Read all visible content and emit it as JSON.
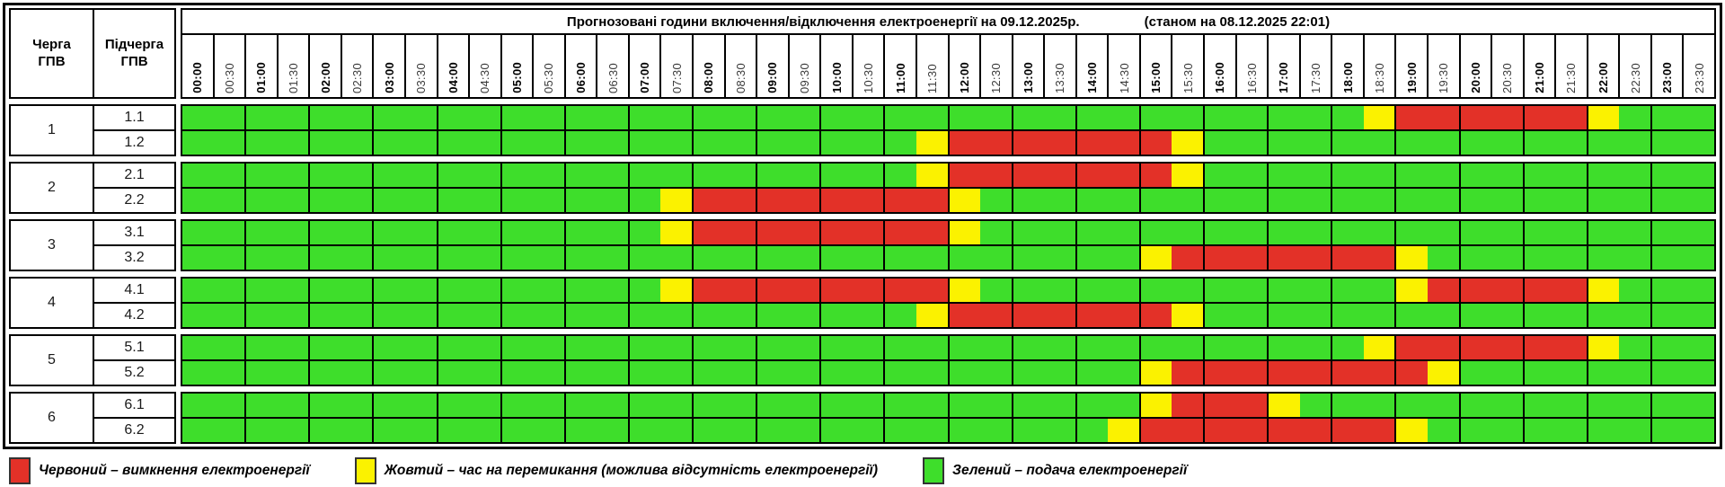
{
  "header": {
    "queue_label": "Черга\nГПВ",
    "subqueue_label": "Підчерга\nГПВ",
    "title": "Прогнозовані години включення/відключення електроенергії на 09.12.2025р.",
    "status_note": "(станом на 08.12.2025 22:01)"
  },
  "legend": [
    {
      "color": "#E33128",
      "label": "Червоний – вимкнення електроенергії"
    },
    {
      "color": "#FBF200",
      "label": "Жовтий – час на перемикання (можлива відсутність електроенергії)"
    },
    {
      "color": "#3EDE2B",
      "label": "Зелений – подача електроенергії"
    }
  ],
  "chart_data": {
    "type": "heatmap",
    "title": "Прогнозовані години включення/відключення електроенергії на 09.12.2025р.",
    "status_note": "(станом на 08.12.2025 22:01)",
    "slot_minutes": 30,
    "time_slots": [
      "00:00",
      "00:30",
      "01:00",
      "01:30",
      "02:00",
      "02:30",
      "03:00",
      "03:30",
      "04:00",
      "04:30",
      "05:00",
      "05:30",
      "06:00",
      "06:30",
      "07:00",
      "07:30",
      "08:00",
      "08:30",
      "09:00",
      "09:30",
      "10:00",
      "10:30",
      "11:00",
      "11:30",
      "12:00",
      "12:30",
      "13:00",
      "13:30",
      "14:00",
      "14:30",
      "15:00",
      "15:30",
      "16:00",
      "16:30",
      "17:00",
      "17:30",
      "18:00",
      "18:30",
      "19:00",
      "19:30",
      "20:00",
      "20:30",
      "21:00",
      "21:30",
      "22:00",
      "22:30",
      "23:00",
      "23:30"
    ],
    "states": {
      "G": "подача електроенергії",
      "Y": "час на перемикання (можлива відсутність електроенергії)",
      "R": "вимкнення електроенергії"
    },
    "colors": {
      "G": "#3EDE2B",
      "Y": "#FBF200",
      "R": "#E33128"
    },
    "groups": [
      {
        "queue": "1",
        "rows": [
          {
            "label": "1.1",
            "runs": [
              [
                "G",
                37
              ],
              [
                "Y",
                1
              ],
              [
                "R",
                6
              ],
              [
                "Y",
                1
              ],
              [
                "G",
                3
              ]
            ]
          },
          {
            "label": "1.2",
            "runs": [
              [
                "G",
                23
              ],
              [
                "Y",
                1
              ],
              [
                "R",
                7
              ],
              [
                "Y",
                1
              ],
              [
                "G",
                16
              ]
            ]
          }
        ]
      },
      {
        "queue": "2",
        "rows": [
          {
            "label": "2.1",
            "runs": [
              [
                "G",
                23
              ],
              [
                "Y",
                1
              ],
              [
                "R",
                7
              ],
              [
                "Y",
                1
              ],
              [
                "G",
                16
              ]
            ]
          },
          {
            "label": "2.2",
            "runs": [
              [
                "G",
                15
              ],
              [
                "Y",
                1
              ],
              [
                "R",
                8
              ],
              [
                "Y",
                1
              ],
              [
                "G",
                23
              ]
            ]
          }
        ]
      },
      {
        "queue": "3",
        "rows": [
          {
            "label": "3.1",
            "runs": [
              [
                "G",
                15
              ],
              [
                "Y",
                1
              ],
              [
                "R",
                8
              ],
              [
                "Y",
                1
              ],
              [
                "G",
                23
              ]
            ]
          },
          {
            "label": "3.2",
            "runs": [
              [
                "G",
                30
              ],
              [
                "Y",
                1
              ],
              [
                "R",
                7
              ],
              [
                "Y",
                1
              ],
              [
                "G",
                9
              ]
            ]
          }
        ]
      },
      {
        "queue": "4",
        "rows": [
          {
            "label": "4.1",
            "runs": [
              [
                "G",
                15
              ],
              [
                "Y",
                1
              ],
              [
                "R",
                8
              ],
              [
                "Y",
                1
              ],
              [
                "G",
                13
              ],
              [
                "Y",
                1
              ],
              [
                "R",
                5
              ],
              [
                "Y",
                1
              ],
              [
                "G",
                3
              ]
            ]
          },
          {
            "label": "4.2",
            "runs": [
              [
                "G",
                23
              ],
              [
                "Y",
                1
              ],
              [
                "R",
                7
              ],
              [
                "Y",
                1
              ],
              [
                "G",
                16
              ]
            ]
          }
        ]
      },
      {
        "queue": "5",
        "rows": [
          {
            "label": "5.1",
            "runs": [
              [
                "G",
                37
              ],
              [
                "Y",
                1
              ],
              [
                "R",
                6
              ],
              [
                "Y",
                1
              ],
              [
                "G",
                3
              ]
            ]
          },
          {
            "label": "5.2",
            "runs": [
              [
                "G",
                30
              ],
              [
                "Y",
                1
              ],
              [
                "R",
                8
              ],
              [
                "Y",
                1
              ],
              [
                "G",
                8
              ]
            ]
          }
        ]
      },
      {
        "queue": "6",
        "rows": [
          {
            "label": "6.1",
            "runs": [
              [
                "G",
                30
              ],
              [
                "Y",
                1
              ],
              [
                "R",
                3
              ],
              [
                "Y",
                1
              ],
              [
                "G",
                13
              ]
            ]
          },
          {
            "label": "6.2",
            "runs": [
              [
                "G",
                29
              ],
              [
                "Y",
                1
              ],
              [
                "R",
                8
              ],
              [
                "Y",
                1
              ],
              [
                "G",
                9
              ]
            ]
          }
        ]
      }
    ]
  }
}
